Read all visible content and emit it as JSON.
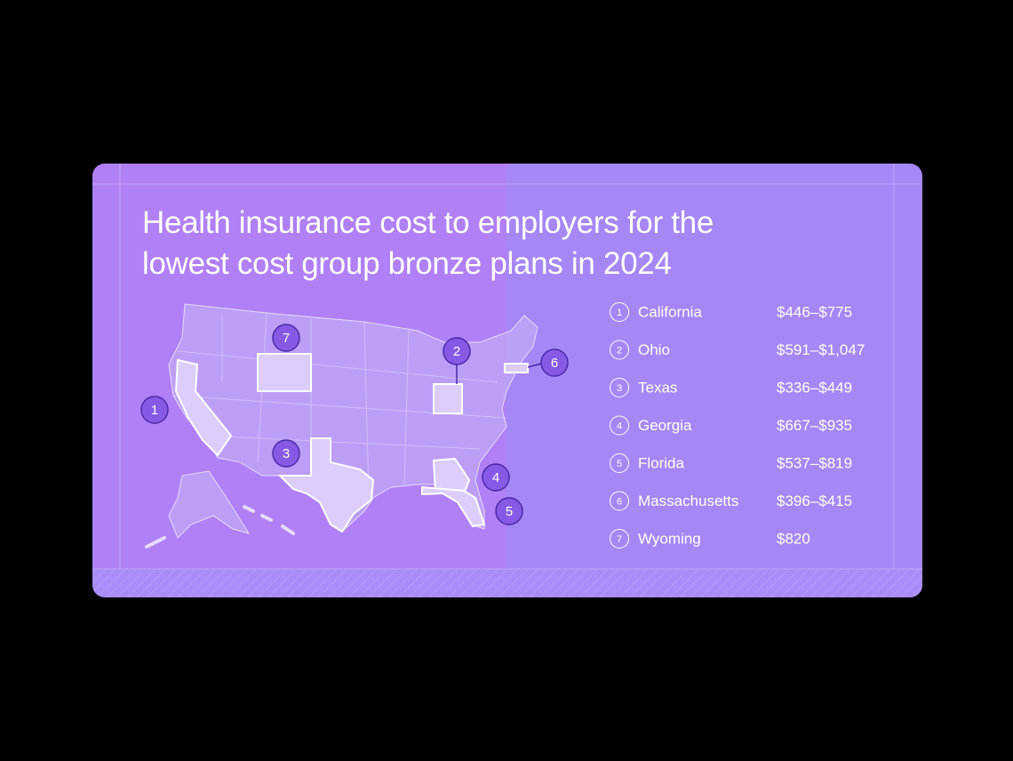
{
  "title": "Health insurance cost to employers for the lowest cost group bronze plans in 2024",
  "states": [
    {
      "number": "1",
      "name": "California",
      "cost": "$446–$775"
    },
    {
      "number": "2",
      "name": "Ohio",
      "cost": "$591–$1,047"
    },
    {
      "number": "3",
      "name": "Texas",
      "cost": "$336–$449"
    },
    {
      "number": "4",
      "name": "Georgia",
      "cost": "$667–$935"
    },
    {
      "number": "5",
      "name": "Florida",
      "cost": "$537–$819"
    },
    {
      "number": "6",
      "name": "Massachusetts",
      "cost": "$396–$415"
    },
    {
      "number": "7",
      "name": "Wyoming",
      "cost": "$820"
    }
  ]
}
